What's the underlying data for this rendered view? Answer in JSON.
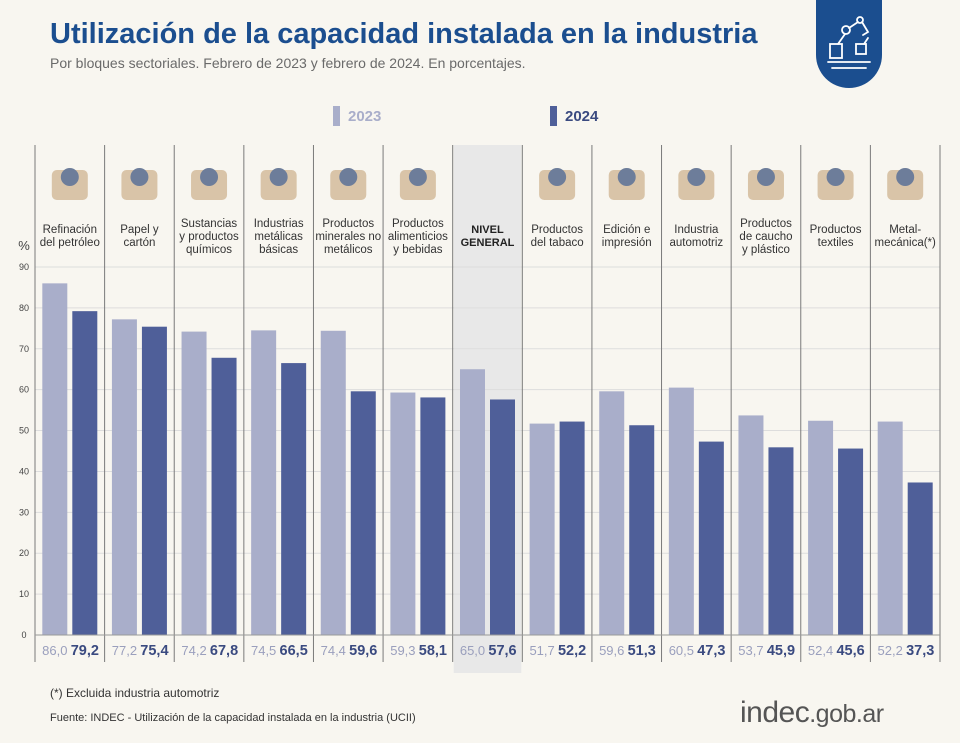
{
  "header": {
    "title": "Utilización de la capacidad instalada en la industria",
    "subtitle": "Por bloques sectoriales. Febrero de 2023 y febrero de 2024. En porcentajes."
  },
  "badge": {
    "icon": "robot-arm-icon"
  },
  "legend": [
    {
      "label": "2023",
      "color": "#a9aeca"
    },
    {
      "label": "2024",
      "color": "#4f5f99"
    }
  ],
  "chart_data": {
    "type": "bar",
    "ylabel": "%",
    "ylim": [
      0,
      90
    ],
    "yticks": [
      0,
      10,
      20,
      30,
      40,
      50,
      60,
      70,
      80,
      90
    ],
    "grid": true,
    "highlighted_category_index": 6,
    "categories": [
      [
        "Refinación",
        "del petróleo"
      ],
      [
        "Papel y",
        "cartón"
      ],
      [
        "Sustancias",
        "y productos",
        "químicos"
      ],
      [
        "Industrias",
        "metálicas",
        "básicas"
      ],
      [
        "Productos",
        "minerales no",
        "metálicos"
      ],
      [
        "Productos",
        "alimenticios",
        "y bebidas"
      ],
      [
        "NIVEL",
        "GENERAL"
      ],
      [
        "Productos",
        "del tabaco"
      ],
      [
        "Edición e",
        "impresión"
      ],
      [
        "Industria",
        "automotriz"
      ],
      [
        "Productos",
        "de caucho",
        "y plástico"
      ],
      [
        "Productos",
        "textiles"
      ],
      [
        "Metal-",
        "mecánica(*)"
      ]
    ],
    "icons": [
      "oil-refinery-icon",
      "paper-box-icon",
      "chemical-flask-icon",
      "metal-saw-icon",
      "cement-mixer-icon",
      "food-drink-icon",
      "",
      "tobacco-pipe-icon",
      "printing-icon",
      "car-icon",
      "tires-icon",
      "textiles-icon",
      "gears-icon"
    ],
    "series": [
      {
        "name": "2023",
        "values": [
          86.0,
          77.2,
          74.2,
          74.5,
          74.4,
          59.3,
          65.0,
          51.7,
          59.6,
          60.5,
          53.7,
          52.4,
          52.2
        ]
      },
      {
        "name": "2024",
        "values": [
          79.2,
          75.4,
          67.8,
          66.5,
          59.6,
          58.1,
          57.6,
          52.2,
          51.3,
          47.3,
          45.9,
          45.6,
          37.3
        ]
      }
    ],
    "value_labels": [
      [
        "86,0",
        "77,2",
        "74,2",
        "74,5",
        "74,4",
        "59,3",
        "65,0",
        "51,7",
        "59,6",
        "60,5",
        "53,7",
        "52,4",
        "52,2"
      ],
      [
        "79,2",
        "75,4",
        "67,8",
        "66,5",
        "59,6",
        "58,1",
        "57,6",
        "52,2",
        "51,3",
        "47,3",
        "45,9",
        "45,6",
        "37,3"
      ]
    ]
  },
  "footer": {
    "footnote": "(*) Excluida industria automotriz",
    "source": "Fuente: INDEC - Utilización de la capacidad instalada en la industria (UCII)",
    "logo_main": "indec",
    "logo_suffix": ".gob.ar"
  }
}
